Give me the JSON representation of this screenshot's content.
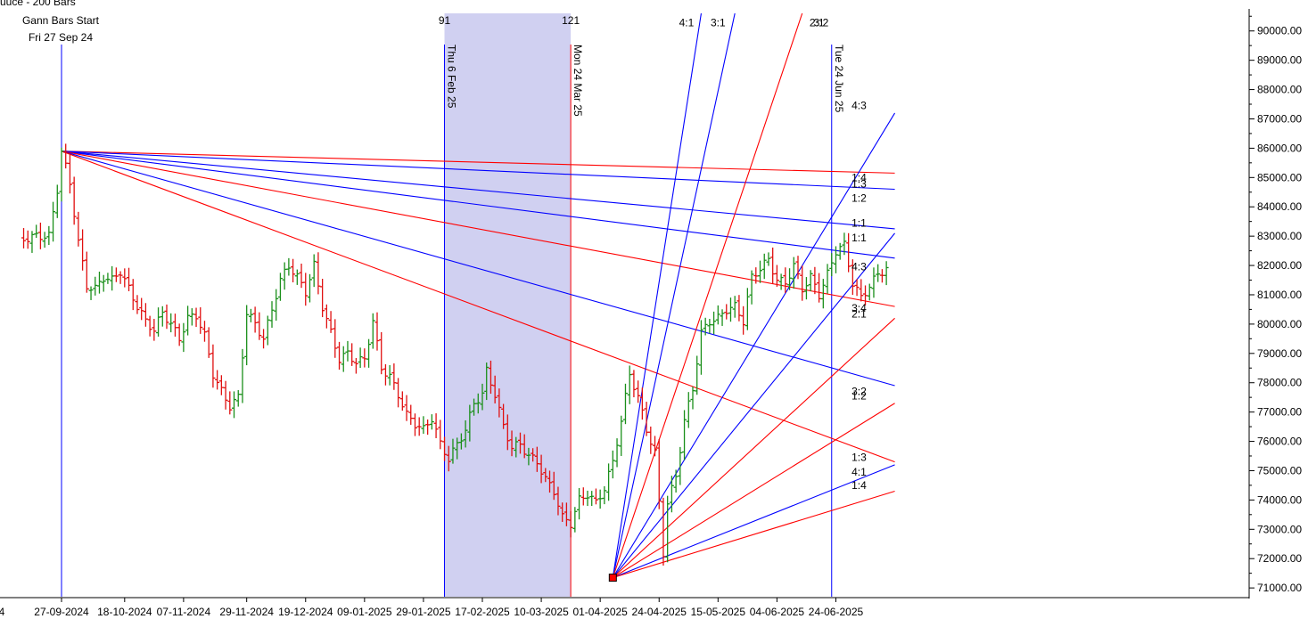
{
  "chart_data": {
    "type": "bar",
    "header_fragment": "uuce - 200 Bars",
    "start_label": "Gann Bars Start",
    "start_date": "Fri 27 Sep 24",
    "colors": {
      "up": "#1a8f1a",
      "down": "#e01010",
      "blue": "#0000ff",
      "red": "#ff0000",
      "band": "#c8c8ee",
      "grid": "#d8d8d8"
    },
    "ylim": [
      70700,
      90600
    ],
    "y_ticks": [
      "71000.00",
      "72000.00",
      "73000.00",
      "74000.00",
      "75000.00",
      "76000.00",
      "77000.00",
      "78000.00",
      "79000.00",
      "80000.00",
      "81000.00",
      "82000.00",
      "83000.00",
      "84000.00",
      "85000.00",
      "86000.00",
      "87000.00",
      "88000.00",
      "89000.00",
      "90000.00"
    ],
    "x_ticks": [
      {
        "bar": 0,
        "label": "27-09-2024"
      },
      {
        "bar": 15,
        "label": "18-10-2024"
      },
      {
        "bar": 29,
        "label": "07-11-2024"
      },
      {
        "bar": 44,
        "label": "29-11-2024"
      },
      {
        "bar": 58,
        "label": "19-12-2024"
      },
      {
        "bar": 72,
        "label": "09-01-2025"
      },
      {
        "bar": 86,
        "label": "29-01-2025"
      },
      {
        "bar": 100,
        "label": "17-02-2025"
      },
      {
        "bar": 114,
        "label": "10-03-2025"
      },
      {
        "bar": 128,
        "label": "01-04-2025"
      },
      {
        "bar": 142,
        "label": "24-04-2025"
      },
      {
        "bar": 156,
        "label": "15-05-2025"
      },
      {
        "bar": 170,
        "label": "04-06-2025"
      },
      {
        "bar": 184,
        "label": "24-06-2025"
      }
    ],
    "left_edge_tick": "4",
    "verticals": [
      {
        "bar": 0,
        "color": "blue",
        "top_number": "",
        "date": ""
      },
      {
        "bar": 91,
        "color": "blue",
        "top_number": "91",
        "date": "Thu 6 Feb 25"
      },
      {
        "bar": 121,
        "color": "red",
        "top_number": "121",
        "date": "Mon 24 Mar 25"
      },
      {
        "bar": 183,
        "color": "blue",
        "top_number": "",
        "date": "Tue 24 Jun 25"
      }
    ],
    "shaded_band": [
      91,
      121
    ],
    "fan_high": {
      "bar": 0,
      "price": 85900
    },
    "fan_low": {
      "bar": 131,
      "price": 71350
    },
    "fan_high_lines": [
      {
        "end_bar": 198,
        "end_price": 85150,
        "color": "red"
      },
      {
        "end_bar": 198,
        "end_price": 84600,
        "color": "blue"
      },
      {
        "end_bar": 198,
        "end_price": 83250,
        "color": "blue"
      },
      {
        "end_bar": 198,
        "end_price": 82250,
        "color": "blue"
      },
      {
        "end_bar": 198,
        "end_price": 80600,
        "color": "red"
      },
      {
        "end_bar": 198,
        "end_price": 77900,
        "color": "blue"
      },
      {
        "end_bar": 198,
        "end_price": 75300,
        "color": "red"
      }
    ],
    "fan_low_lines": [
      {
        "end_bar": 152,
        "end_price": 90600,
        "color": "blue"
      },
      {
        "end_bar": 160,
        "end_price": 90600,
        "color": "blue"
      },
      {
        "end_bar": 176,
        "end_price": 90600,
        "color": "red"
      },
      {
        "end_bar": 198,
        "end_price": 87200,
        "color": "blue"
      },
      {
        "end_bar": 198,
        "end_price": 83100,
        "color": "blue"
      },
      {
        "end_bar": 198,
        "end_price": 80200,
        "color": "red"
      },
      {
        "end_bar": 198,
        "end_price": 77300,
        "color": "red"
      },
      {
        "end_bar": 198,
        "end_price": 75200,
        "color": "blue"
      },
      {
        "end_bar": 198,
        "end_price": 74300,
        "color": "red"
      }
    ],
    "ratio_labels": [
      {
        "text": "4:1",
        "bar": 148.5,
        "price": 90280
      },
      {
        "text": "3:1",
        "bar": 156,
        "price": 90280
      },
      {
        "text": "2:1",
        "bar": 179.5,
        "price": 90280
      },
      {
        "text": "3:2",
        "bar": 180.5,
        "price": 90280
      },
      {
        "text": "4:3",
        "bar": 189.5,
        "price": 87450
      },
      {
        "text": "1:4",
        "bar": 189.5,
        "price": 85000
      },
      {
        "text": "1:3",
        "bar": 189.5,
        "price": 84780
      },
      {
        "text": "1:2",
        "bar": 189.5,
        "price": 84300
      },
      {
        "text": "1:1",
        "bar": 189.5,
        "price": 83450
      },
      {
        "text": "1:1",
        "bar": 189.5,
        "price": 82950
      },
      {
        "text": "4:3",
        "bar": 189.5,
        "price": 81950
      },
      {
        "text": "3:4",
        "bar": 189.5,
        "price": 80550
      },
      {
        "text": "2:1",
        "bar": 189.5,
        "price": 80350
      },
      {
        "text": "3:2",
        "bar": 189.5,
        "price": 77700
      },
      {
        "text": "1:2",
        "bar": 189.5,
        "price": 77550
      },
      {
        "text": "1:3",
        "bar": 189.5,
        "price": 75450
      },
      {
        "text": "4:1",
        "bar": 189.5,
        "price": 74950
      },
      {
        "text": "1:4",
        "bar": 189.5,
        "price": 74500
      }
    ],
    "anchors": [
      [
        -9,
        82900
      ],
      [
        -6,
        83000
      ],
      [
        -3,
        83000
      ],
      [
        -1,
        84600
      ],
      [
        0,
        85900
      ],
      [
        2,
        84800
      ],
      [
        4,
        82800
      ],
      [
        6,
        81300
      ],
      [
        8,
        81200
      ],
      [
        10,
        81600
      ],
      [
        12,
        81500
      ],
      [
        14,
        81800
      ],
      [
        16,
        81200
      ],
      [
        18,
        80600
      ],
      [
        20,
        80100
      ],
      [
        22,
        79800
      ],
      [
        24,
        80400
      ],
      [
        26,
        80000
      ],
      [
        28,
        79500
      ],
      [
        30,
        80200
      ],
      [
        32,
        80300
      ],
      [
        34,
        79600
      ],
      [
        36,
        78300
      ],
      [
        38,
        77700
      ],
      [
        40,
        77200
      ],
      [
        42,
        77500
      ],
      [
        44,
        80400
      ],
      [
        46,
        80000
      ],
      [
        48,
        79500
      ],
      [
        50,
        80500
      ],
      [
        52,
        81500
      ],
      [
        54,
        82000
      ],
      [
        56,
        81600
      ],
      [
        58,
        81100
      ],
      [
        60,
        82000
      ],
      [
        62,
        80600
      ],
      [
        64,
        79700
      ],
      [
        66,
        78800
      ],
      [
        68,
        79000
      ],
      [
        70,
        78700
      ],
      [
        72,
        78800
      ],
      [
        74,
        80100
      ],
      [
        76,
        78500
      ],
      [
        78,
        78200
      ],
      [
        80,
        77600
      ],
      [
        82,
        76900
      ],
      [
        84,
        76600
      ],
      [
        86,
        76400
      ],
      [
        88,
        76800
      ],
      [
        90,
        75900
      ],
      [
        92,
        75400
      ],
      [
        94,
        75900
      ],
      [
        96,
        76400
      ],
      [
        98,
        77300
      ],
      [
        100,
        77600
      ],
      [
        101,
        78400
      ],
      [
        103,
        77600
      ],
      [
        105,
        76500
      ],
      [
        107,
        75800
      ],
      [
        109,
        75900
      ],
      [
        111,
        75500
      ],
      [
        113,
        75300
      ],
      [
        115,
        74700
      ],
      [
        117,
        74300
      ],
      [
        119,
        73400
      ],
      [
        121,
        73200
      ],
      [
        123,
        74000
      ],
      [
        125,
        74200
      ],
      [
        127,
        73900
      ],
      [
        129,
        74400
      ],
      [
        131,
        75300
      ],
      [
        133,
        76700
      ],
      [
        135,
        78300
      ],
      [
        137,
        77500
      ],
      [
        139,
        76400
      ],
      [
        141,
        75600
      ],
      [
        143,
        72200
      ],
      [
        144,
        73900
      ],
      [
        146,
        74800
      ],
      [
        148,
        76700
      ],
      [
        150,
        77800
      ],
      [
        152,
        79700
      ],
      [
        154,
        80100
      ],
      [
        156,
        80200
      ],
      [
        158,
        80500
      ],
      [
        160,
        80600
      ],
      [
        162,
        80100
      ],
      [
        164,
        81600
      ],
      [
        166,
        81900
      ],
      [
        168,
        82200
      ],
      [
        170,
        81500
      ],
      [
        172,
        81400
      ],
      [
        174,
        82000
      ],
      [
        176,
        81200
      ],
      [
        178,
        81600
      ],
      [
        180,
        81000
      ],
      [
        182,
        81700
      ],
      [
        184,
        82500
      ],
      [
        186,
        82700
      ],
      [
        188,
        81400
      ],
      [
        190,
        80900
      ],
      [
        192,
        81300
      ],
      [
        194,
        81700
      ],
      [
        196,
        81900
      ]
    ]
  }
}
